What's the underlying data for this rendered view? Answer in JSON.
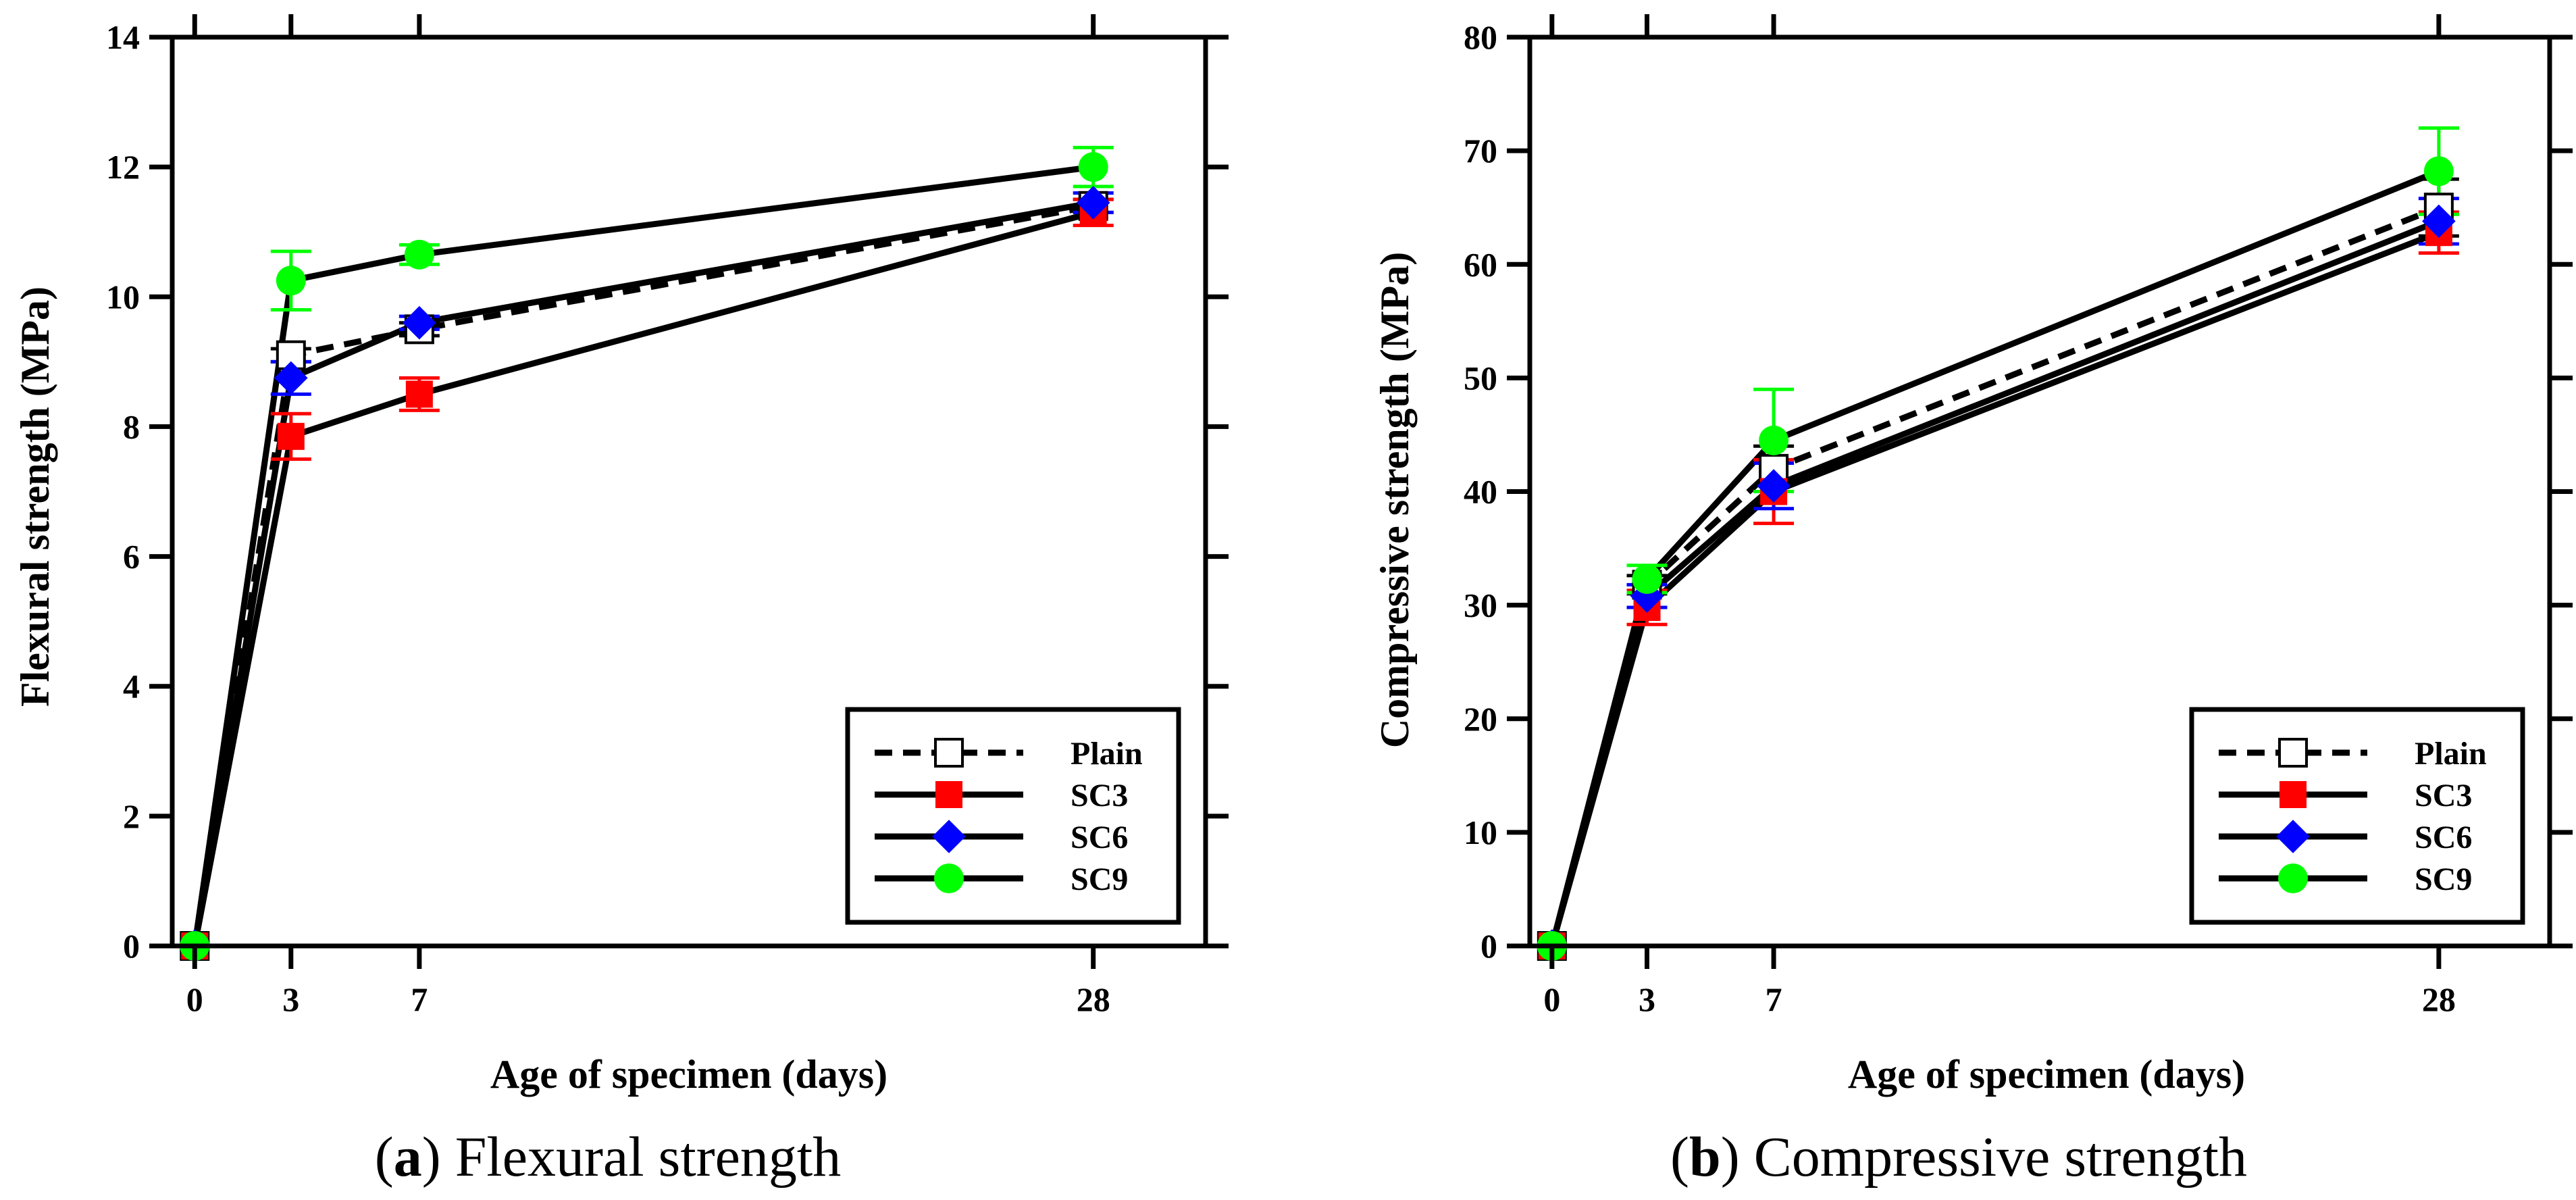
{
  "chart_data": [
    {
      "type": "line",
      "caption_label": "a",
      "caption_text": "Flexural strength",
      "xlabel": "Age of specimen (days)",
      "ylabel": "Flexural strength (MPa)",
      "xlim": [
        -0.7,
        31.5
      ],
      "ylim": [
        0,
        14
      ],
      "xticks": [
        0,
        3,
        7,
        28
      ],
      "yticks": [
        0,
        2,
        4,
        6,
        8,
        10,
        12,
        14
      ],
      "legend_position": "bottom-right",
      "x": [
        0,
        3,
        7,
        28
      ],
      "series": [
        {
          "name": "Plain",
          "values": [
            0,
            9.1,
            9.5,
            11.4
          ],
          "errors": [
            0,
            0.1,
            0.1,
            0.1
          ],
          "color": "#000000",
          "marker": "open-square",
          "dashed": true
        },
        {
          "name": "SC3",
          "values": [
            0,
            7.85,
            8.5,
            11.3
          ],
          "errors": [
            0,
            0.35,
            0.25,
            0.2
          ],
          "color": "#ff0000",
          "marker": "filled-square",
          "dashed": false
        },
        {
          "name": "SC6",
          "values": [
            0,
            8.75,
            9.6,
            11.45
          ],
          "errors": [
            0,
            0.25,
            0.1,
            0.15
          ],
          "color": "#0000ff",
          "marker": "diamond",
          "dashed": false
        },
        {
          "name": "SC9",
          "values": [
            0,
            10.25,
            10.65,
            12.0
          ],
          "errors": [
            0,
            0.45,
            0.15,
            0.3
          ],
          "color": "#00ff00",
          "marker": "circle",
          "dashed": false
        }
      ]
    },
    {
      "type": "line",
      "caption_label": "b",
      "caption_text": "Compressive strength",
      "xlabel": "Age of specimen (days)",
      "ylabel": "Compressive strength (MPa)",
      "xlim": [
        -0.7,
        31.5
      ],
      "ylim": [
        0,
        80
      ],
      "xticks": [
        0,
        3,
        7,
        28
      ],
      "yticks": [
        0,
        10,
        20,
        30,
        40,
        50,
        60,
        70,
        80
      ],
      "legend_position": "bottom-right",
      "x": [
        0,
        3,
        7,
        28
      ],
      "series": [
        {
          "name": "Plain",
          "values": [
            0,
            31.8,
            42.0,
            65.0
          ],
          "errors": [
            0,
            0.8,
            2.0,
            2.5
          ],
          "color": "#000000",
          "marker": "open-square",
          "dashed": true
        },
        {
          "name": "SC3",
          "values": [
            0,
            29.8,
            40.0,
            62.8
          ],
          "errors": [
            0,
            1.5,
            2.8,
            1.8
          ],
          "color": "#ff0000",
          "marker": "filled-square",
          "dashed": false
        },
        {
          "name": "SC6",
          "values": [
            0,
            30.8,
            40.5,
            63.8
          ],
          "errors": [
            0,
            1.0,
            2.0,
            2.0
          ],
          "color": "#0000ff",
          "marker": "diamond",
          "dashed": false
        },
        {
          "name": "SC9",
          "values": [
            0,
            32.3,
            44.5,
            68.2
          ],
          "errors": [
            0,
            1.2,
            4.5,
            3.8
          ],
          "color": "#00ff00",
          "marker": "circle",
          "dashed": false
        }
      ]
    }
  ]
}
